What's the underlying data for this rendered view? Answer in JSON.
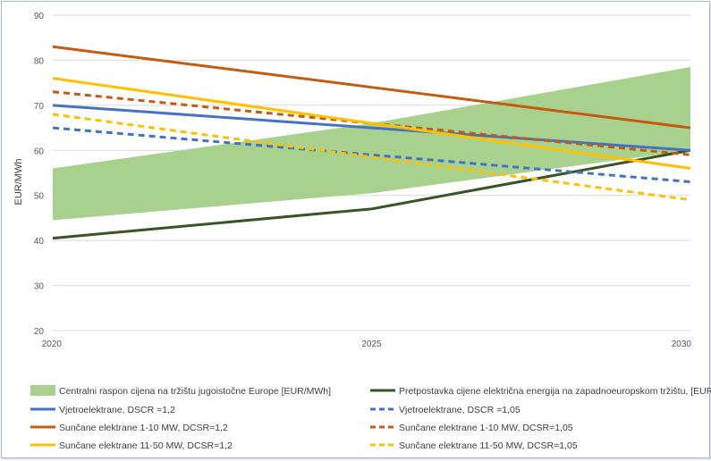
{
  "chart_data": {
    "type": "line",
    "ylabel": "EUR/MWh",
    "xlabel": "",
    "title": "",
    "x": [
      "2020",
      "2025",
      "2030"
    ],
    "xlim": [
      2020,
      2030
    ],
    "ylim": [
      20,
      90
    ],
    "yticks": [
      "20",
      "30",
      "40",
      "50",
      "60",
      "70",
      "80",
      "90"
    ],
    "grid": true,
    "legend_position": "bottom",
    "band": {
      "name": "Centralni raspon cijena na tržištu jugoistočne Europe  [EUR/MWh]",
      "color": "#a9d18e",
      "lower": [
        44.5,
        50.5,
        60
      ],
      "upper": [
        56,
        66,
        78.5
      ]
    },
    "series": [
      {
        "name": "Pretpostavka cijene električna energija na zapadnoeuropskom tržištu,  [EUR/MWh]",
        "color": "#375623",
        "dash": "solid",
        "values": [
          40.5,
          47,
          60
        ]
      },
      {
        "name": "Vjetroelektrane, DSCR =1,2",
        "color": "#4472c4",
        "dash": "solid",
        "values": [
          70,
          65,
          60
        ]
      },
      {
        "name": "Vjetroelektrane, DSCR =1,05",
        "color": "#4472c4",
        "dash": "dashed",
        "values": [
          65,
          59,
          53
        ]
      },
      {
        "name": "Sunčane elektrane 1-10 MW, DCSR=1,2",
        "color": "#c55a11",
        "dash": "solid",
        "values": [
          83,
          74,
          65
        ]
      },
      {
        "name": "Sunčane elektrane 1-10 MW, DCSR=1,05",
        "color": "#c55a11",
        "dash": "dashed",
        "values": [
          73,
          66,
          59
        ]
      },
      {
        "name": "Sunčane elektrane 11-50 MW, DCSR=1,2",
        "color": "#ffc000",
        "dash": "solid",
        "values": [
          76,
          66,
          56
        ]
      },
      {
        "name": "Sunčane elektrane 11-50 MW, DCSR=1,05",
        "color": "#ffc000",
        "dash": "dashed",
        "values": [
          68,
          58.5,
          49
        ]
      }
    ]
  }
}
